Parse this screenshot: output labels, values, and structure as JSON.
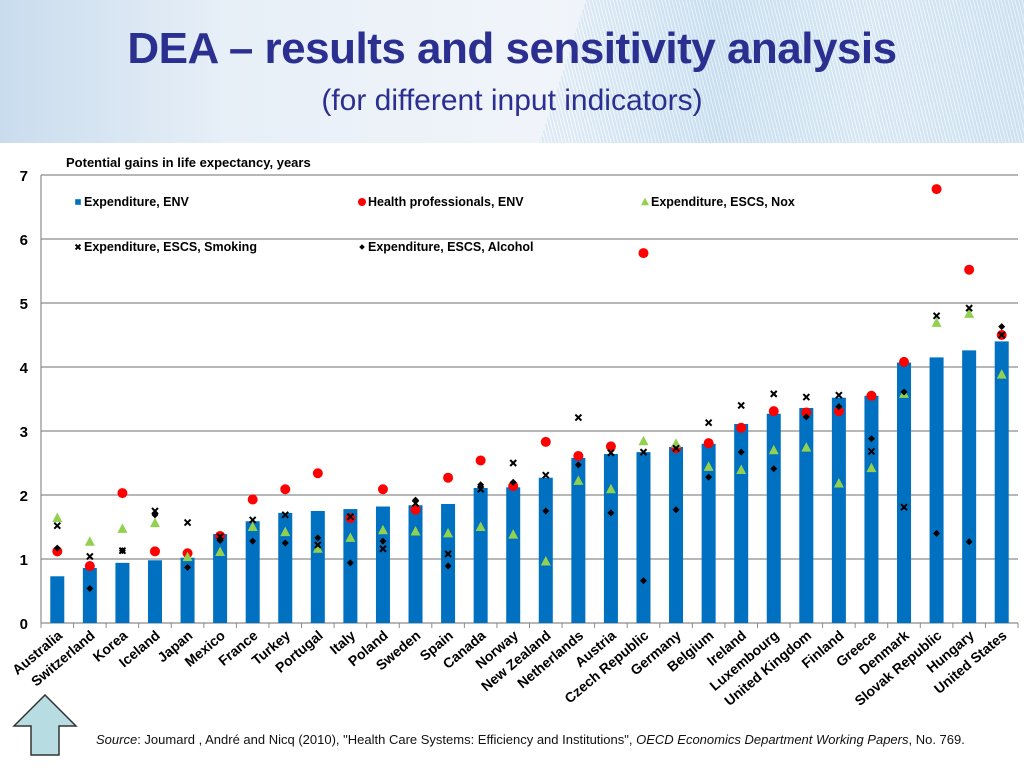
{
  "header": {
    "title": "DEA – results and sensitivity analysis",
    "subtitle": "(for different input indicators)"
  },
  "chart_data": {
    "type": "bar",
    "title": "Potential gains in life expectancy, years",
    "xlabel": "",
    "ylabel": "",
    "ylim": [
      0,
      7
    ],
    "yticks": [
      0,
      1,
      2,
      3,
      4,
      5,
      6,
      7
    ],
    "grid": true,
    "legend_position": "top-left",
    "categories": [
      "Australia",
      "Switzerland",
      "Korea",
      "Iceland",
      "Japan",
      "Mexico",
      "France",
      "Turkey",
      "Portugal",
      "Italy",
      "Poland",
      "Sweden",
      "Spain",
      "Canada",
      "Norway",
      "New Zealand",
      "Netherlands",
      "Austria",
      "Czech Republic",
      "Germany",
      "Belgium",
      "Ireland",
      "Luxembourg",
      "United Kingdom",
      "Finland",
      "Greece",
      "Denmark",
      "Slovak Republic",
      "Hungary",
      "United States"
    ],
    "series": [
      {
        "name": "Expenditure, ENV",
        "kind": "bar",
        "color": "#0070c0",
        "marker": "square",
        "values": [
          0.73,
          0.86,
          0.94,
          0.98,
          1.02,
          1.39,
          1.59,
          1.72,
          1.75,
          1.78,
          1.82,
          1.84,
          1.86,
          2.11,
          2.12,
          2.27,
          2.58,
          2.64,
          2.67,
          2.75,
          2.8,
          3.11,
          3.27,
          3.36,
          3.52,
          3.55,
          4.07,
          4.15,
          4.26,
          4.4
        ]
      },
      {
        "name": "Health professionals, ENV",
        "kind": "scatter",
        "color": "#ff0000",
        "marker": "circle",
        "values": [
          1.12,
          0.89,
          2.03,
          1.12,
          1.09,
          1.36,
          1.93,
          2.09,
          2.34,
          1.64,
          2.09,
          1.77,
          2.27,
          2.54,
          2.14,
          2.83,
          2.61,
          2.76,
          5.78,
          2.73,
          2.81,
          3.05,
          3.31,
          3.29,
          3.31,
          3.55,
          4.08,
          6.78,
          5.52,
          4.5
        ]
      },
      {
        "name": "Expenditure, ESCS, Nox",
        "kind": "scatter",
        "color": "#92d050",
        "marker": "triangle",
        "values": [
          1.64,
          1.27,
          1.47,
          1.56,
          1.03,
          1.11,
          1.5,
          1.42,
          1.16,
          1.33,
          1.45,
          1.43,
          1.4,
          1.5,
          1.38,
          0.96,
          2.22,
          2.09,
          2.84,
          2.8,
          2.44,
          2.39,
          2.7,
          2.74,
          2.18,
          2.42,
          3.58,
          4.69,
          4.83,
          3.88
        ]
      },
      {
        "name": "Expenditure, ESCS, Smoking",
        "kind": "scatter",
        "color": "#000000",
        "marker": "x",
        "values": [
          1.52,
          1.04,
          1.13,
          1.75,
          1.57,
          1.35,
          1.61,
          1.69,
          1.22,
          1.66,
          1.16,
          1.87,
          1.08,
          2.09,
          2.5,
          2.31,
          3.21,
          2.66,
          2.67,
          2.73,
          3.13,
          3.4,
          3.58,
          3.53,
          3.56,
          2.68,
          1.81,
          4.8,
          4.92,
          4.5
        ]
      },
      {
        "name": "Expenditure, ESCS, Alcohol",
        "kind": "scatter",
        "color": "#000000",
        "marker": "diamond",
        "values": [
          1.17,
          0.54,
          1.13,
          1.69,
          0.87,
          1.29,
          1.28,
          1.25,
          1.33,
          0.94,
          1.28,
          1.92,
          0.89,
          2.16,
          2.2,
          1.75,
          2.47,
          1.72,
          0.66,
          1.77,
          2.28,
          2.67,
          2.41,
          3.22,
          3.38,
          2.88,
          3.61,
          1.4,
          1.27,
          4.63
        ]
      }
    ]
  },
  "footer": {
    "source_label": "Source",
    "source_text_1": ": Joumard , André and Nicq (2010), \"Health Care Systems: Efficiency  and Institutions\", ",
    "source_journal": "OECD Economics Department Working Papers",
    "source_text_2": ", No. 769."
  },
  "nav": {
    "up_arrow_icon": "up-arrow-icon"
  }
}
